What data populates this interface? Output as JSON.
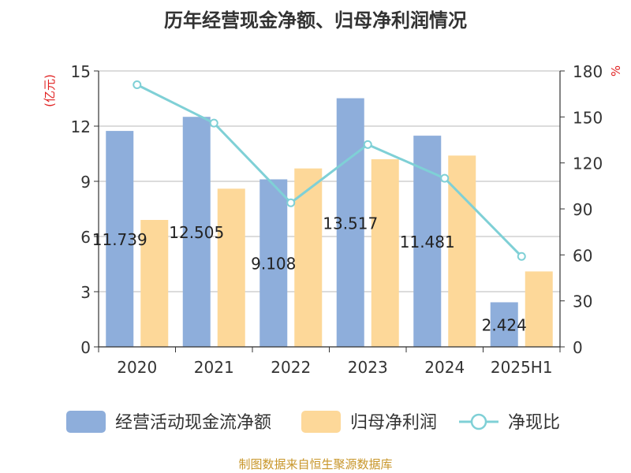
{
  "chart_data": {
    "type": "bar",
    "title": "历年经营现金净额、归母净利润情况",
    "categories": [
      "2020",
      "2021",
      "2022",
      "2023",
      "2024",
      "2025H1"
    ],
    "y_left": {
      "label": "(亿元)",
      "range": [
        0,
        15
      ],
      "ticks": [
        0,
        3,
        6,
        9,
        12,
        15
      ]
    },
    "y_right": {
      "label": "%",
      "range": [
        0,
        180
      ],
      "ticks": [
        0,
        30,
        60,
        90,
        120,
        150,
        180
      ]
    },
    "series": [
      {
        "name": "经营活动现金流净额",
        "type": "bar",
        "axis": "left",
        "color": "#8eaedb",
        "values": [
          11.739,
          12.505,
          9.108,
          13.517,
          11.481,
          2.424
        ],
        "labels": [
          "11.739",
          "12.505",
          "9.108",
          "13.517",
          "11.481",
          "2.424"
        ]
      },
      {
        "name": "归母净利润",
        "type": "bar",
        "axis": "left",
        "color": "#fdd899",
        "values": [
          6.9,
          8.6,
          9.7,
          10.2,
          10.4,
          4.1
        ]
      },
      {
        "name": "净现比",
        "type": "line",
        "axis": "right",
        "color": "#7fd0d6",
        "values": [
          171,
          146,
          94,
          132,
          110,
          59
        ]
      }
    ],
    "grid": true,
    "legend_position": "bottom"
  },
  "source_text": "制图数据来自恒生聚源数据库"
}
